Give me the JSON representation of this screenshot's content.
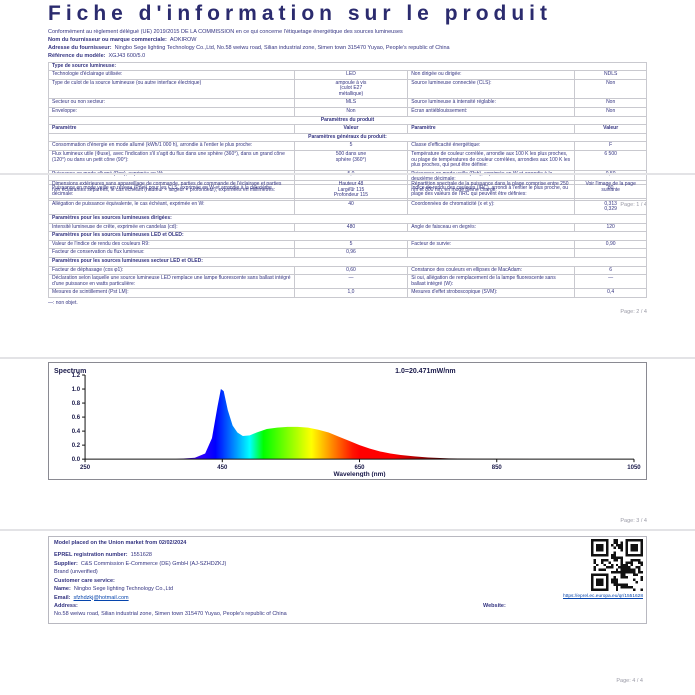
{
  "doc": {
    "title": "Fiche d'information sur le produit",
    "regulation_note": "Conformément au règlement délégué (UE) 2019/2015 DE LA COMMISSION en ce qui concerne l'étiquetage énergétique des sources lumineuses",
    "supplier_name_label": "Nom du fournisseur ou marque commerciale:",
    "supplier_name": "AOKIROW",
    "supplier_address_label": "Adresse du fournisseur:",
    "supplier_address": "Ningbo Sege lighting Technology Co.,Ltd, No.58 weiwu road, Silian industrial zone, Simen town 315470 Yuyao, People's republic of China",
    "model_label": "Référence du modèle:",
    "model": "XGJ43 600/5.0"
  },
  "page1_rows": [
    {
      "span": "Type de source lumineuse:",
      "bold": true
    },
    {
      "cells": [
        "Technologie d'éclairage utilisée:",
        "LED",
        "Non dirigée ou dirigée:",
        "NDLS"
      ]
    },
    {
      "cells": [
        "Type de culot de la source lumineuse (ou autre interface électrique)",
        "ampoule à vis\n(culot E27\nmétallique)",
        "Source lumineuse connectée (CLS):",
        "Non"
      ]
    },
    {
      "cells": [
        "Secteur ou non secteur:",
        "MLS",
        "Source lumineuse à intensité réglable:",
        "Non"
      ]
    },
    {
      "cells": [
        "Enveloppe:",
        "Non",
        "Écran antiéblouissement:",
        "Non"
      ]
    },
    {
      "span": "Paramètres du produit",
      "bold": true,
      "center": true
    },
    {
      "cells": [
        "Paramètre",
        "Valeur",
        "Paramètre",
        "Valeur"
      ],
      "head": true
    },
    {
      "span": "Paramètres généraux du produit:",
      "bold": true,
      "center": true
    },
    {
      "cells": [
        "Consommation d'énergie en mode allumé (kWh/1 000 h), arrondie à l'entier le plus proche:",
        "5",
        "Classe d'efficacité énergétique:",
        "F"
      ]
    },
    {
      "cells": [
        "Flux lumineux utile (Φuse), avec l'indication s'il s'agit du flux dans une sphère (360°), dans un grand cône (120°) ou dans un petit cône (90°):",
        "500 dans une\nsphère (360°)",
        "Température de couleur corrélée, arrondie aux 100 K les plus proches, ou plage de températures de couleur corrélées, arrondies aux 100 K les plus proches, qui peut être définie:",
        "6 500"
      ]
    },
    {
      "cells": [
        "Puissance en mode allumé (Pon), exprimée en W:",
        "5,0",
        "Puissance en mode veille (Psb), exprimée en W et arrondie à la deuxième décimale:",
        "0,50"
      ]
    },
    {
      "cells": [
        "Puissance en mode veille en réseau (Pnet) pour les CLS, exprimée en W et arrondie à la deuxième décimale:",
        "—",
        "Indice de rendu des couleurs (IRC), arrondi à l'entier le plus proche, ou plage des valeurs de l'IRC qui peuvent être définies:",
        "80"
      ]
    }
  ],
  "page2_rows": [
    {
      "cells": [
        "Dimensions extérieures sans appareillage de commande, parties de commande de l'éclairage et parties non éclairantes séparées, le cas échéant (hauteur × largeur × profondeur), exprimées en millimètres:",
        "Hauteur 48\nLargeur 115\nProfondeur 115",
        "Répartition spectrale de la puissance dans la plage comprise entre 250 nm et 800 nm, en mode pleine charge:",
        "Voir l'image de la page suivante"
      ]
    },
    {
      "cells": [
        "Allégation de puissance équivalente, le cas échéant, exprimée en W:",
        "40",
        "Coordonnées de chromaticité (x et y):",
        "0,313\n0,329"
      ]
    },
    {
      "span": "Paramètres pour les sources lumineuses dirigées:",
      "bold": true
    },
    {
      "cells": [
        "Intensité lumineuse de crête, exprimée en candelas (cd):",
        "480",
        "Angle de faisceau en degrés:",
        "120"
      ]
    },
    {
      "span": "Paramètres pour les sources lumineuses LED et OLED:",
      "bold": true
    },
    {
      "cells": [
        "Valeur de l'indice de rendu des couleurs R9:",
        "5",
        "Facteur de survie:",
        "0,90"
      ]
    },
    {
      "cells": [
        "Facteur de conservation du flux lumineux:",
        "0,96",
        "",
        ""
      ]
    },
    {
      "span": "Paramètres pour les sources lumineuses secteur LED et OLED:",
      "bold": true
    },
    {
      "cells": [
        "Facteur de déphasage (cos φ1):",
        "0,60",
        "Constance des couleurs en ellipses de MacAdam:",
        "6"
      ]
    },
    {
      "cells": [
        "Déclaration selon laquelle une source lumineuse LED remplace une lampe fluorescente sans ballast intégré d'une puissance en watts particulière:",
        "—",
        "Si oui, allégation de remplacement de la lampe fluorescente sans ballast intégré (W):",
        "—"
      ]
    },
    {
      "cells": [
        "Mesures de scintillement (Pst LM):",
        "1,0",
        "Mesures d'effet stroboscopique (SVM):",
        "0,4"
      ]
    }
  ],
  "page2_note": "—: non objet.",
  "chart_data": {
    "type": "area",
    "title": "Spectrum",
    "annotation": "1.0=20.471mW/nm",
    "xlabel": "Wavelength (nm)",
    "ylabel": "",
    "xlim": [
      250,
      1050
    ],
    "ylim": [
      0,
      1.2
    ],
    "x_ticks": [
      250,
      450,
      650,
      850,
      1050
    ],
    "y_ticks": [
      0.0,
      0.2,
      0.4,
      0.6,
      0.8,
      1.0,
      1.2
    ],
    "grid": false,
    "legend": "none",
    "series": [
      {
        "name": "spectral power distribution (relative)",
        "x": [
          250,
          380,
          410,
          425,
          435,
          443,
          448,
          452,
          458,
          465,
          472,
          480,
          490,
          500,
          515,
          530,
          545,
          560,
          575,
          590,
          605,
          620,
          635,
          650,
          665,
          680,
          695,
          710,
          730,
          750,
          780,
          820,
          900,
          1050
        ],
        "y": [
          0,
          0,
          0.02,
          0.08,
          0.3,
          0.75,
          1.0,
          0.97,
          0.7,
          0.48,
          0.38,
          0.33,
          0.34,
          0.38,
          0.43,
          0.45,
          0.46,
          0.46,
          0.45,
          0.42,
          0.38,
          0.32,
          0.26,
          0.2,
          0.15,
          0.11,
          0.08,
          0.06,
          0.04,
          0.025,
          0.012,
          0.006,
          0.002,
          0
        ]
      }
    ]
  },
  "page4": {
    "market_line": "Model placed on the Union market from 02/02/2024",
    "eprel_label": "EPREL registration number:",
    "eprel_number": "1551628",
    "qr_link": "https://eprel.ec.europa.eu/qr/1551628",
    "supplier_label": "Supplier:",
    "supplier_value": "C&S Commission E-Commerce (DE) GmbH (AJ-SZHDZKJ)",
    "verified_line": "Brand (unverified)",
    "care_label": "Customer care service:",
    "name_label": "Name:",
    "name_value": "Ningbo Sege lighting Technology Co.,Ltd",
    "email_label": "Email:",
    "email_value": "sfzhdzkj@hotmail.com",
    "website_label": "Website:",
    "address_label": "Address:",
    "address_value": "No.58 weiwu road, Silian industrial zone, Simen town 315470 Yuyao, People's republic of China"
  },
  "footers": {
    "p1": "Page: 1 / 4",
    "p2": "Page: 2 / 4",
    "p3": "Page: 3 / 4",
    "p4": "Page: 4 / 4"
  },
  "colors": {
    "text": "#333380",
    "title": "#2b2b6e",
    "link": "#0645ad",
    "border": "#c9c9cf"
  },
  "icons": {
    "qr_code": "qr-code-icon"
  }
}
